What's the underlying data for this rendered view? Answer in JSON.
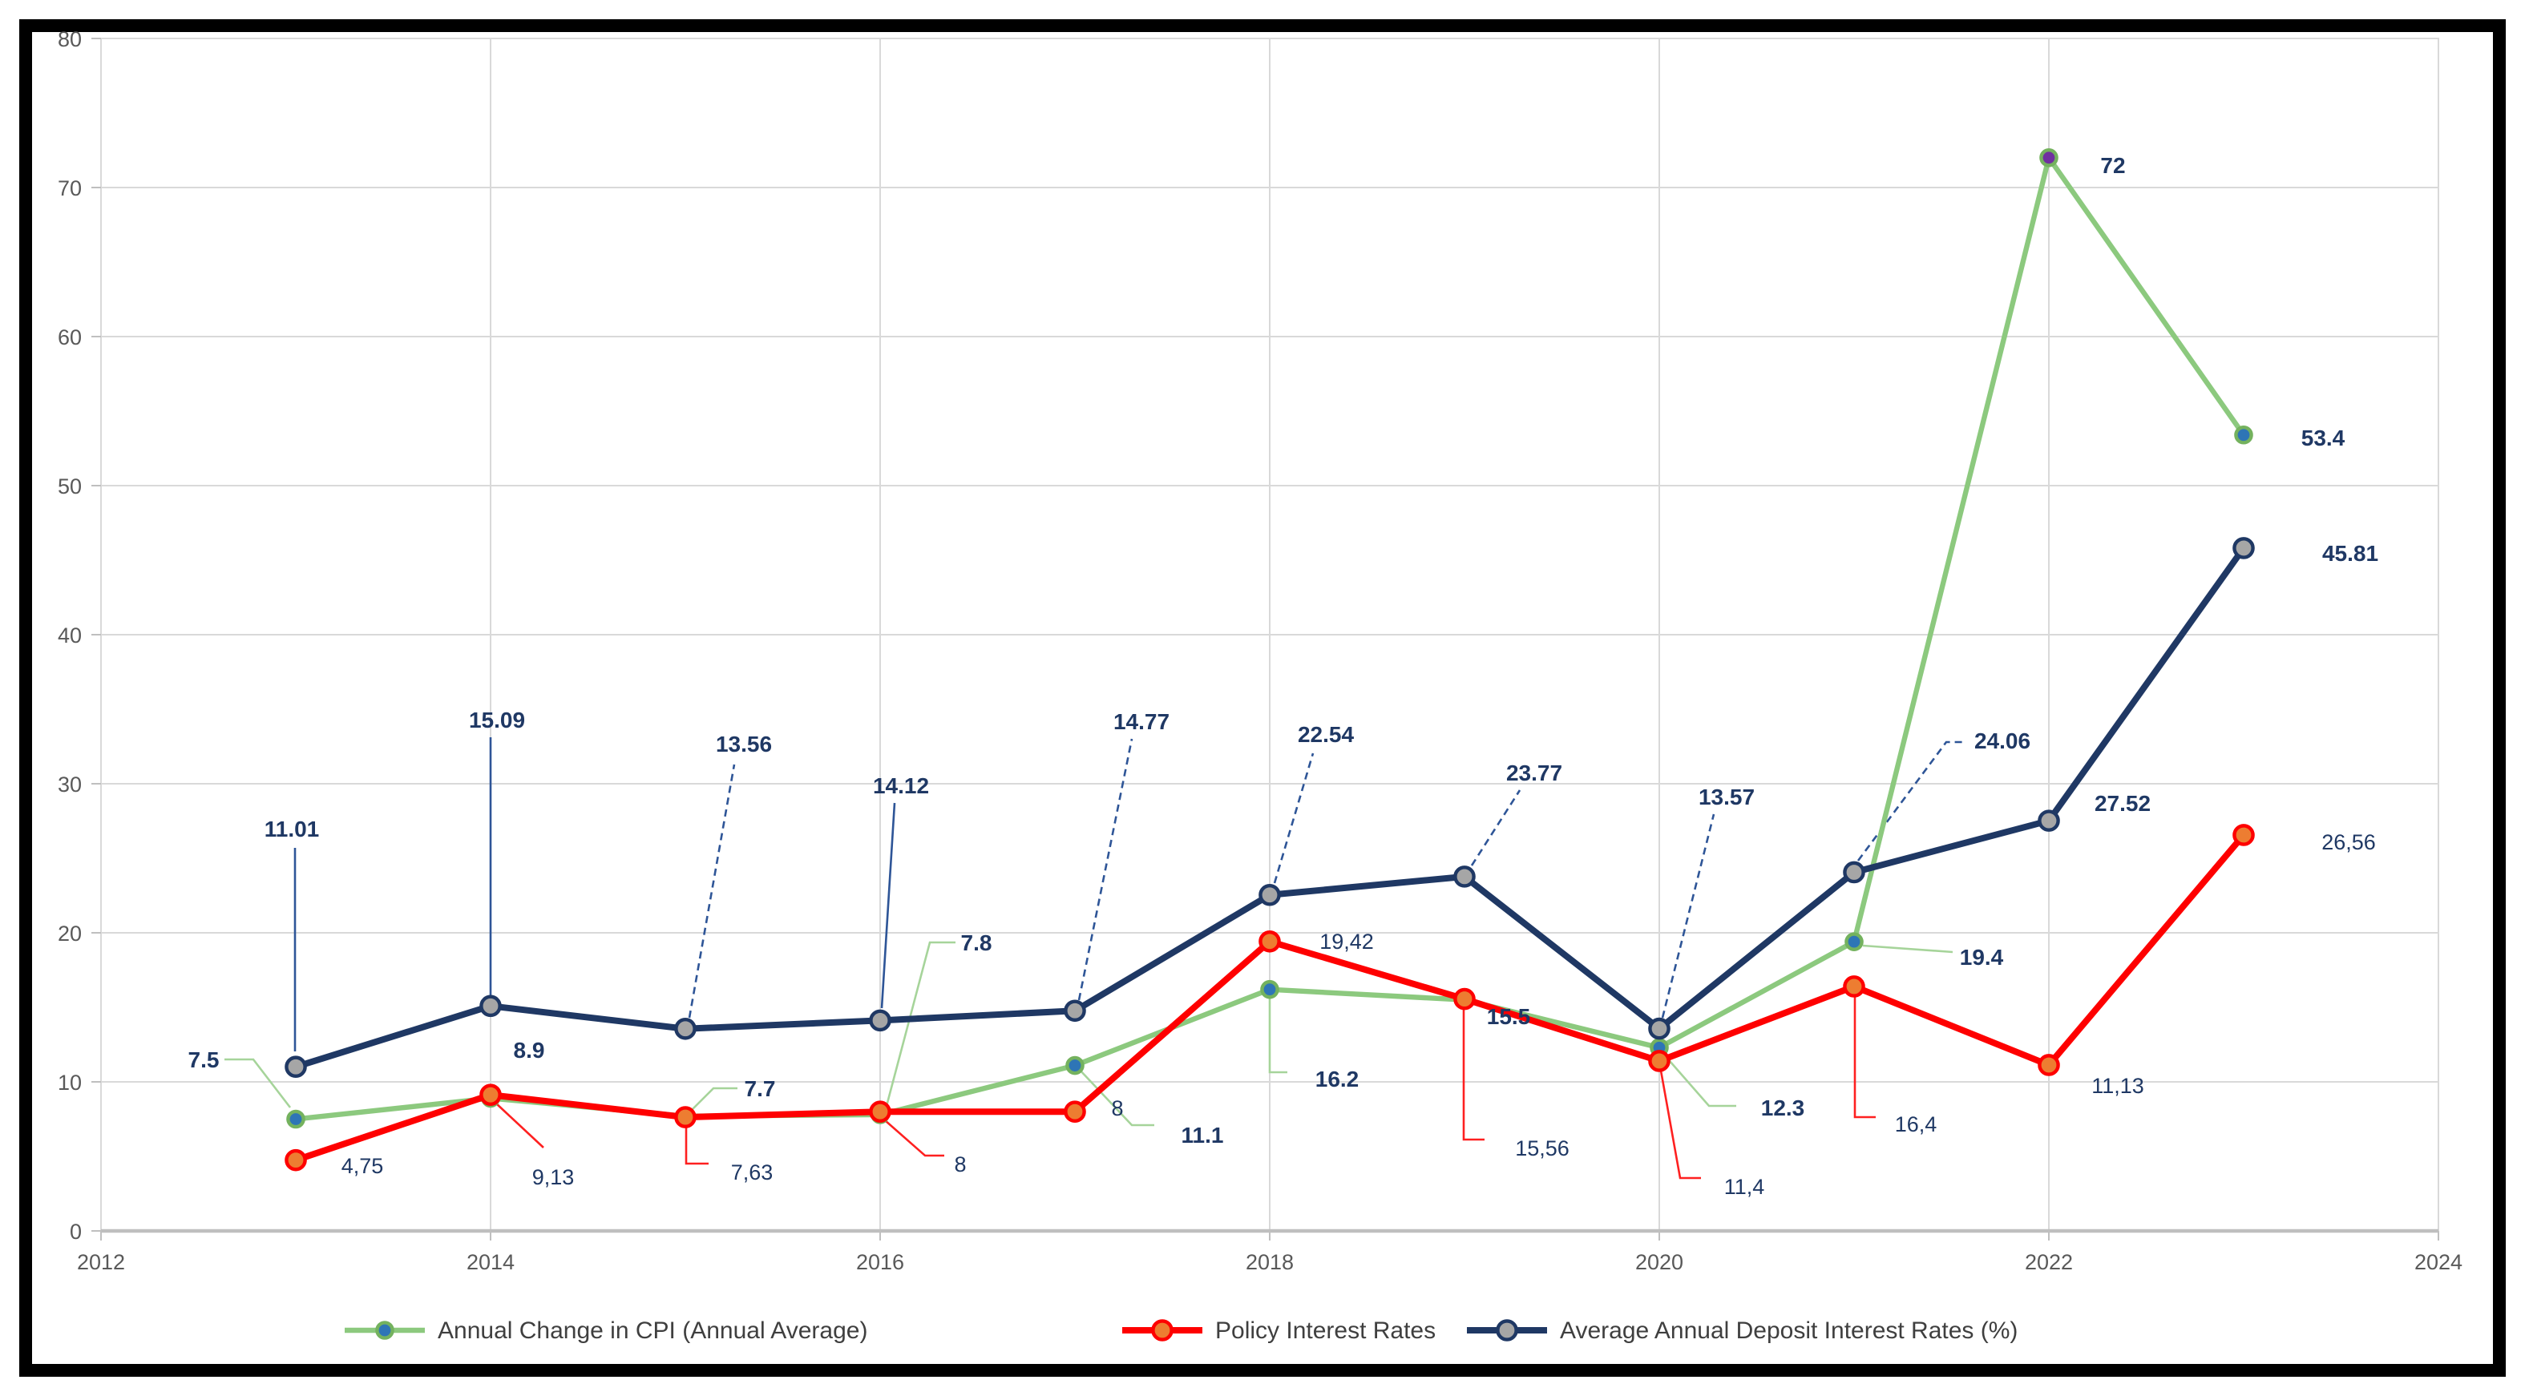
{
  "chart_data": {
    "type": "line",
    "title": "",
    "x_axis": {
      "min": 2012,
      "max": 2024,
      "tick_values": [
        2012,
        2014,
        2016,
        2018,
        2020,
        2022,
        2024
      ],
      "tick_labels": [
        "2012",
        "2014",
        "2016",
        "2018",
        "2020",
        "2022",
        "2024"
      ],
      "gridline_values": [
        2014,
        2016,
        2018,
        2020,
        2022
      ]
    },
    "y_axis": {
      "min": 0,
      "max": 80,
      "tick_values": [
        0,
        10,
        20,
        30,
        40,
        50,
        60,
        70,
        80
      ],
      "tick_labels": [
        "0",
        "10",
        "20",
        "30",
        "40",
        "50",
        "60",
        "70",
        "80"
      ]
    },
    "grid_on": true,
    "legend_position": "bottom",
    "categories": [
      2013,
      2014,
      2015,
      2016,
      2017,
      2018,
      2019,
      2020,
      2021,
      2022,
      2023
    ],
    "series": [
      {
        "name": "Annual Change in CPI (Annual Average)",
        "values": [
          7.5,
          8.9,
          7.7,
          7.8,
          11.1,
          16.2,
          15.5,
          12.3,
          19.4,
          72,
          53.4
        ],
        "line_color": "#8cc97e",
        "line_width": 3.2,
        "marker": {
          "fill": "#2e75b6",
          "stroke": "#74b25e",
          "radius": 4.8
        },
        "special_marker_fills": {
          "9": "#7030a0"
        },
        "leader_color": "#a6d49a",
        "label_color": "#1f3864",
        "label_bold": true,
        "labels": [
          {
            "t": "7.5",
            "x": 127,
            "y": 661,
            "lead": [
              [
                140,
                661
              ],
              [
                158,
                661
              ],
              [
                181,
                691
              ]
            ]
          },
          {
            "t": "8.9",
            "x": 330,
            "y": 655
          },
          {
            "t": "7.7",
            "x": 474,
            "y": 679,
            "lead": [
              [
                431,
                693
              ],
              [
                445,
                679
              ],
              [
                460,
                679
              ]
            ]
          },
          {
            "t": "7.8",
            "x": 609,
            "y": 588,
            "lead": [
              [
                553,
                690
              ],
              [
                580,
                588
              ],
              [
                596,
                588
              ]
            ]
          },
          {
            "t": "11.1",
            "x": 750,
            "y": 708,
            "lead": [
              [
                673,
                667
              ],
              [
                706,
                702
              ],
              [
                720,
                702
              ]
            ]
          },
          {
            "t": "16.2",
            "x": 834,
            "y": 673,
            "lead": [
              [
                792,
                622
              ],
              [
                792,
                669
              ],
              [
                803,
                669
              ]
            ]
          },
          {
            "t": "15.5",
            "x": 941,
            "y": 634
          },
          {
            "t": "12.3",
            "x": 1112,
            "y": 691,
            "lead": [
              [
                1038,
                658
              ],
              [
                1066,
                690
              ],
              [
                1083,
                690
              ]
            ]
          },
          {
            "t": "19.4",
            "x": 1236,
            "y": 597,
            "lead": [
              [
                1162,
                590
              ],
              [
                1218,
                594
              ]
            ]
          },
          {
            "t": "72",
            "x": 1318,
            "y": 103
          },
          {
            "t": "53.4",
            "x": 1449,
            "y": 273
          }
        ]
      },
      {
        "name": "Policy Interest Rates",
        "values": [
          4.75,
          9.13,
          7.63,
          8,
          8,
          19.42,
          15.56,
          11.4,
          16.4,
          11.13,
          26.56
        ],
        "line_color": "#fe0000",
        "line_width": 4,
        "marker": {
          "fill": "#ed7d31",
          "stroke": "#fe0000",
          "radius": 5.8
        },
        "special_marker_fills": {},
        "leader_color": "#fe2020",
        "label_color": "#1f3864",
        "label_bold": false,
        "labels": [
          {
            "t": "4,75",
            "x": 226,
            "y": 727
          },
          {
            "t": "9,13",
            "x": 345,
            "y": 734,
            "lead": [
              [
                309,
                688
              ],
              [
                339,
                716
              ]
            ]
          },
          {
            "t": "7,63",
            "x": 469,
            "y": 731,
            "lead": [
              [
                428,
                702
              ],
              [
                428,
                726
              ],
              [
                442,
                726
              ]
            ]
          },
          {
            "t": "8",
            "x": 599,
            "y": 726,
            "lead": [
              [
                552,
                699
              ],
              [
                577,
                721
              ],
              [
                589,
                721
              ]
            ]
          },
          {
            "t": "8",
            "x": 697,
            "y": 691
          },
          {
            "t": "19,42",
            "x": 840,
            "y": 587
          },
          {
            "t": "15,56",
            "x": 962,
            "y": 716,
            "lead": [
              [
                913,
                630
              ],
              [
                913,
                711
              ],
              [
                926,
                711
              ]
            ]
          },
          {
            "t": "11,4",
            "x": 1088,
            "y": 740,
            "lead": [
              [
                1036,
                668
              ],
              [
                1048,
                735
              ],
              [
                1061,
                735
              ]
            ]
          },
          {
            "t": "16,4",
            "x": 1195,
            "y": 701,
            "lead": [
              [
                1157,
                621
              ],
              [
                1157,
                697
              ],
              [
                1170,
                697
              ]
            ]
          },
          {
            "t": "11,13",
            "x": 1321,
            "y": 677
          },
          {
            "t": "26,56",
            "x": 1465,
            "y": 525
          }
        ]
      },
      {
        "name": "Average Annual Deposit Interest Rates (%)",
        "values": [
          11.01,
          15.09,
          13.56,
          14.12,
          14.77,
          22.54,
          23.77,
          13.57,
          24.06,
          27.52,
          45.81
        ],
        "line_color": "#1f3864",
        "line_width": 4,
        "marker": {
          "fill": "#a6a6a6",
          "stroke": "#1f3864",
          "radius": 5.8
        },
        "special_marker_fills": {},
        "leader_color": "#2e5597",
        "label_color": "#1f3864",
        "label_bold": true,
        "labels": [
          {
            "t": "11.01",
            "x": 182,
            "y": 517,
            "lead": [
              [
                184,
                529
              ],
              [
                184,
                656
              ]
            ]
          },
          {
            "t": "15.09",
            "x": 310,
            "y": 449,
            "lead": [
              [
                306,
                460
              ],
              [
                306,
                621
              ]
            ]
          },
          {
            "t": "13.56",
            "x": 464,
            "y": 464,
            "lead": [
              [
                430,
                635
              ],
              [
                458,
                477
              ]
            ],
            "dash": true
          },
          {
            "t": "14.12",
            "x": 562,
            "y": 490,
            "lead": [
              [
                550,
                629
              ],
              [
                558,
                501
              ]
            ]
          },
          {
            "t": "14.77",
            "x": 712,
            "y": 450,
            "lead": [
              [
                673,
                624
              ],
              [
                706,
                461
              ]
            ],
            "dash": true
          },
          {
            "t": "22.54",
            "x": 827,
            "y": 458,
            "lead": [
              [
                795,
                551
              ],
              [
                819,
                470
              ]
            ],
            "dash": true
          },
          {
            "t": "23.77",
            "x": 957,
            "y": 482,
            "lead": [
              [
                918,
                540
              ],
              [
                948,
                493
              ]
            ],
            "dash": true
          },
          {
            "t": "13.57",
            "x": 1077,
            "y": 497,
            "lead": [
              [
                1037,
                635
              ],
              [
                1069,
                508
              ]
            ],
            "dash": true
          },
          {
            "t": "24.06",
            "x": 1249,
            "y": 462,
            "lead": [
              [
                1159,
                537
              ],
              [
                1214,
                463
              ],
              [
                1225,
                463
              ]
            ],
            "dash": true
          },
          {
            "t": "27.52",
            "x": 1324,
            "y": 501
          },
          {
            "t": "45.81",
            "x": 1466,
            "y": 345
          }
        ]
      }
    ],
    "legend": {
      "items": [
        {
          "label": "Annual Change in CPI (Annual Average)"
        },
        {
          "label": "Policy Interest Rates"
        },
        {
          "label": "Average Annual Deposit Interest Rates (%)"
        }
      ]
    }
  },
  "style": {
    "gridline_color": "#d9d9d9",
    "axis_line_color": "#bfbfbf",
    "tick_label_color": "#595959",
    "legend_text_color": "#3f3f3f",
    "figure_border_color": "#000000",
    "background": "#ffffff"
  }
}
